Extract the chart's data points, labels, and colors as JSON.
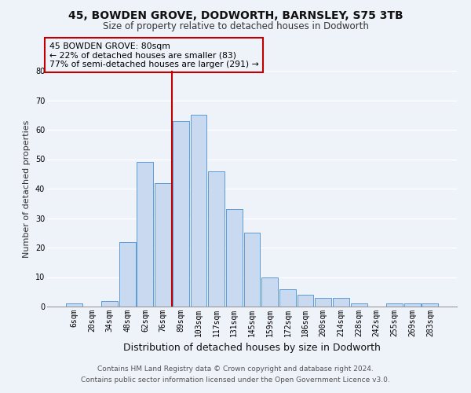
{
  "title": "45, BOWDEN GROVE, DODWORTH, BARNSLEY, S75 3TB",
  "subtitle": "Size of property relative to detached houses in Dodworth",
  "xlabel": "Distribution of detached houses by size in Dodworth",
  "ylabel": "Number of detached properties",
  "bar_labels": [
    "6sqm",
    "20sqm",
    "34sqm",
    "48sqm",
    "62sqm",
    "76sqm",
    "89sqm",
    "103sqm",
    "117sqm",
    "131sqm",
    "145sqm",
    "159sqm",
    "172sqm",
    "186sqm",
    "200sqm",
    "214sqm",
    "228sqm",
    "242sqm",
    "255sqm",
    "269sqm",
    "283sqm"
  ],
  "bar_values": [
    1,
    0,
    2,
    22,
    49,
    42,
    63,
    65,
    46,
    33,
    25,
    10,
    6,
    4,
    3,
    3,
    1,
    0,
    1,
    1,
    1
  ],
  "bar_color": "#c9d9f0",
  "bar_edge_color": "#5b9bd5",
  "vline_x": 5.5,
  "vline_color": "#c00000",
  "ylim": [
    0,
    80
  ],
  "yticks": [
    0,
    10,
    20,
    30,
    40,
    50,
    60,
    70,
    80
  ],
  "annotation_title": "45 BOWDEN GROVE: 80sqm",
  "annotation_line1": "← 22% of detached houses are smaller (83)",
  "annotation_line2": "77% of semi-detached houses are larger (291) →",
  "annotation_box_color": "#c00000",
  "footer_line1": "Contains HM Land Registry data © Crown copyright and database right 2024.",
  "footer_line2": "Contains public sector information licensed under the Open Government Licence v3.0.",
  "background_color": "#eef2f9",
  "grid_color": "#ffffff",
  "title_fontsize": 10,
  "subtitle_fontsize": 8.5,
  "xlabel_fontsize": 9,
  "ylabel_fontsize": 8,
  "tick_fontsize": 7,
  "annotation_fontsize": 7.8,
  "footer_fontsize": 6.5
}
